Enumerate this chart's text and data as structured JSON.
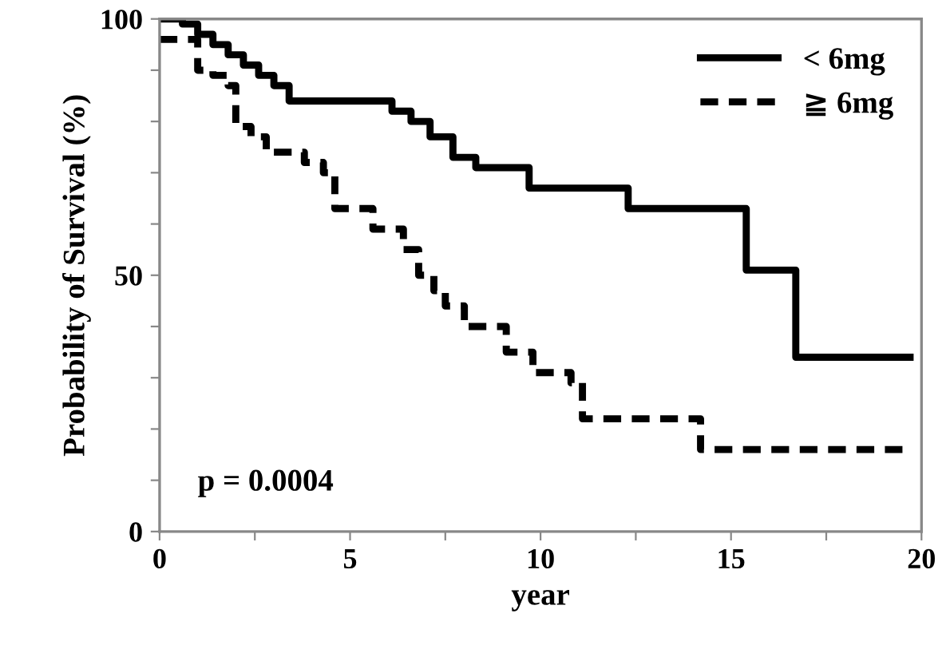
{
  "chart_data": {
    "type": "step",
    "xlabel": "year",
    "ylabel": "Probability of Survival (%)",
    "xlim": [
      0,
      20
    ],
    "ylim": [
      0,
      100
    ],
    "xticks": [
      0,
      {
        "value": 2.5,
        "label": null
      },
      5,
      {
        "value": 7.5,
        "label": null
      },
      10,
      {
        "value": 12.5,
        "label": null
      },
      15,
      {
        "value": 17.5,
        "label": null
      },
      20
    ],
    "yticks": [
      0,
      {
        "value": 10,
        "label": null
      },
      {
        "value": 20,
        "label": null
      },
      {
        "value": 30,
        "label": null
      },
      {
        "value": 40,
        "label": null
      },
      50,
      {
        "value": 60,
        "label": null
      },
      {
        "value": 70,
        "label": null
      },
      {
        "value": 80,
        "label": null
      },
      {
        "value": 90,
        "label": null
      },
      100
    ],
    "grid": false,
    "legend": "top right",
    "annotations": [
      {
        "text": "p = 0.0004"
      }
    ],
    "series": [
      {
        "name": "< 6mg",
        "color": "#000000",
        "line_style": "solid",
        "x": [
          0,
          0.6,
          1.0,
          1.4,
          1.8,
          2.2,
          2.6,
          3.0,
          3.4,
          6.1,
          6.6,
          7.1,
          7.7,
          8.3,
          9.7,
          12.3,
          15.4,
          16.7,
          19.7
        ],
        "values": [
          100,
          99,
          97,
          95,
          93,
          91,
          89,
          87,
          84,
          82,
          80,
          77,
          73,
          71,
          67,
          63,
          51,
          34,
          34
        ]
      },
      {
        "name": "≧ 6mg",
        "color": "#000000",
        "line_style": "dashed",
        "x": [
          0,
          1.0,
          1.4,
          1.8,
          2.0,
          2.4,
          2.8,
          3.8,
          4.3,
          4.6,
          5.6,
          6.4,
          6.8,
          7.2,
          7.5,
          8.0,
          9.1,
          9.8,
          10.8,
          11.1,
          14.2,
          19.5
        ],
        "values": [
          96,
          90,
          89,
          87,
          79,
          77,
          74,
          72,
          70,
          63,
          59,
          55,
          50,
          47,
          44,
          40,
          35,
          31,
          29,
          22,
          16,
          16
        ]
      }
    ]
  }
}
